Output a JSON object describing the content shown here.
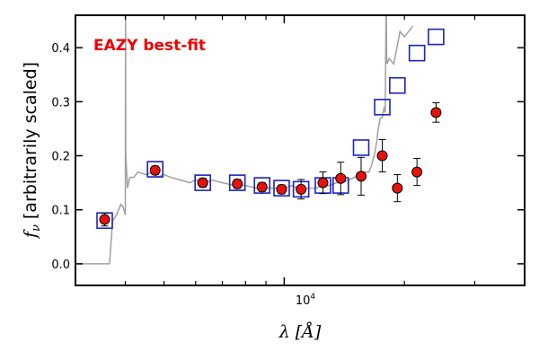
{
  "chart_data": {
    "type": "scatter",
    "title": "",
    "annotation": "EAZY best-fit",
    "xlabel_sym": "λ",
    "xlabel_unit": "[Å]",
    "ylabel_sym": "f",
    "ylabel_sub": "ν",
    "ylabel_text": " [arbitrarily scaled]",
    "x_scale": "log",
    "xlim": [
      3000,
      40000
    ],
    "ylim": [
      -0.04,
      0.46
    ],
    "yticks": [
      0.0,
      0.1,
      0.2,
      0.3,
      0.4
    ],
    "ytick_labels": [
      "0.0",
      "0.1",
      "0.2",
      "0.3",
      "0.4"
    ],
    "xtick_label": "10",
    "xtick_label_exp": "4",
    "colors": {
      "observed_fill": "#e8120c",
      "observed_edge": "#000000",
      "model_box": "#1a22c8",
      "template": "#a0a0a0",
      "annotation": "#ee0000"
    },
    "series": [
      {
        "kind": "observed",
        "x": [
          3550,
          4750,
          6250,
          7630,
          8800,
          9850,
          11020,
          12500,
          13850,
          15580,
          17600,
          19200,
          21500,
          24000
        ],
        "y": [
          0.082,
          0.173,
          0.15,
          0.148,
          0.142,
          0.138,
          0.138,
          0.15,
          0.158,
          0.162,
          0.2,
          0.14,
          0.17,
          0.28
        ],
        "yerr": [
          0.012,
          0.008,
          0.008,
          0.008,
          0.008,
          0.008,
          0.018,
          0.02,
          0.03,
          0.035,
          0.03,
          0.025,
          0.025,
          0.018
        ]
      },
      {
        "kind": "model",
        "x": [
          3550,
          4750,
          6250,
          7630,
          8800,
          9850,
          11020,
          12500,
          13850,
          15580,
          17600,
          19200,
          21500,
          24000
        ],
        "y": [
          0.08,
          0.175,
          0.15,
          0.15,
          0.145,
          0.14,
          0.138,
          0.145,
          0.145,
          0.215,
          0.29,
          0.33,
          0.39,
          0.42
        ]
      },
      {
        "kind": "template",
        "x": [
          3000,
          3300,
          3450,
          3550,
          3650,
          3700,
          3720,
          3800,
          3900,
          3950,
          4000,
          4005,
          4010,
          4050,
          4100,
          4200,
          4300,
          4500,
          4700,
          4800,
          5000,
          5200,
          5500,
          5800,
          6000,
          6300,
          6600,
          7000,
          7500,
          8000,
          8500,
          9000,
          9500,
          10000,
          10500,
          11000,
          11500,
          12000,
          12500,
          13000,
          13500,
          14000,
          14500,
          15000,
          15500,
          16000,
          16300,
          16500,
          16800,
          17000,
          17200,
          17400,
          17600,
          17800,
          17900,
          18000,
          18050,
          18100,
          18300,
          18800,
          19500,
          20000,
          21000
        ],
        "y": [
          0.0,
          0.0,
          0.0,
          0.0,
          0.0,
          0.06,
          0.08,
          0.09,
          0.11,
          0.105,
          0.09,
          0.5,
          0.2,
          0.14,
          0.16,
          0.16,
          0.17,
          0.165,
          0.17,
          0.16,
          0.165,
          0.16,
          0.155,
          0.15,
          0.155,
          0.15,
          0.155,
          0.15,
          0.145,
          0.145,
          0.14,
          0.14,
          0.14,
          0.14,
          0.145,
          0.135,
          0.14,
          0.14,
          0.145,
          0.145,
          0.15,
          0.15,
          0.155,
          0.16,
          0.17,
          0.17,
          0.17,
          0.18,
          0.2,
          0.22,
          0.25,
          0.27,
          0.27,
          0.29,
          0.28,
          0.5,
          0.38,
          0.37,
          0.38,
          0.37,
          0.43,
          0.42,
          0.44
        ]
      }
    ]
  }
}
